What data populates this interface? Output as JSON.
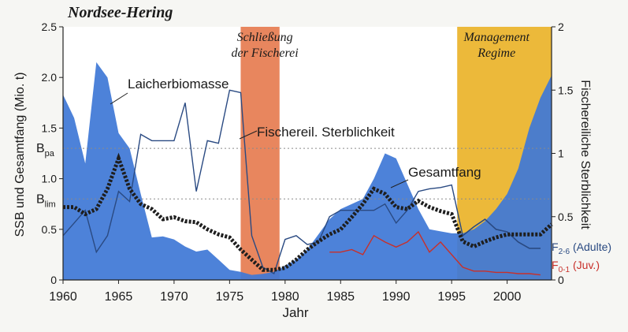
{
  "chart_data": {
    "type": "area",
    "title": "Nordsee-Hering",
    "xlabel": "Jahr",
    "ylabel_left": "SSB und Gesamtfang (Mio. t)",
    "ylabel_right": "Fischereiliche Sterblichkeit",
    "xlim": [
      1960,
      2004
    ],
    "ylim_left": [
      0,
      2.5
    ],
    "ylim_right": [
      0,
      2
    ],
    "x_ticks": [
      1960,
      1965,
      1970,
      1975,
      1980,
      1985,
      1990,
      1995,
      2000
    ],
    "y_left_ticks": [
      "0",
      "0.5",
      "1.0",
      "1.5",
      "2.0",
      "2.5"
    ],
    "y_right_ticks": [
      "0",
      "0.5",
      "1",
      "1.5",
      "2"
    ],
    "reference_lines": [
      {
        "label": "B",
        "sub": "pa",
        "y": 1.3
      },
      {
        "label": "B",
        "sub": "lim",
        "y": 0.8
      }
    ],
    "shaded_periods": [
      {
        "label_lines": [
          "Schließung",
          "der Fischerei"
        ],
        "x_start": 1976,
        "x_end": 1979.5,
        "color": "#e8865e"
      },
      {
        "label_lines": [
          "Management",
          "Regime"
        ],
        "x_start": 1995.5,
        "x_end": 2004,
        "color": "#ecb93a"
      }
    ],
    "series": [
      {
        "name": "Laicherbiomasse",
        "kind": "area",
        "axis": "left",
        "color": "#3f78d6",
        "x": [
          1960,
          1961,
          1962,
          1963,
          1964,
          1965,
          1966,
          1967,
          1968,
          1969,
          1970,
          1971,
          1972,
          1973,
          1974,
          1975,
          1976,
          1977,
          1978,
          1979,
          1980,
          1981,
          1982,
          1983,
          1984,
          1985,
          1986,
          1987,
          1988,
          1989,
          1990,
          1991,
          1992,
          1993,
          1994,
          1995,
          1996,
          1997,
          1998,
          1999,
          2000,
          2001,
          2002,
          2003,
          2004
        ],
        "values": [
          1.83,
          1.6,
          1.15,
          2.15,
          2.0,
          1.45,
          1.3,
          0.85,
          0.42,
          0.43,
          0.4,
          0.33,
          0.28,
          0.3,
          0.2,
          0.1,
          0.08,
          0.05,
          0.06,
          0.08,
          0.14,
          0.2,
          0.3,
          0.45,
          0.6,
          0.7,
          0.75,
          0.8,
          1.0,
          1.25,
          1.2,
          0.95,
          0.7,
          0.5,
          0.48,
          0.46,
          0.46,
          0.5,
          0.58,
          0.7,
          0.85,
          1.1,
          1.5,
          1.8,
          2.02
        ]
      },
      {
        "name": "Fischereil. Sterblichkeit",
        "kind": "line",
        "axis": "right",
        "color": "#2a4a82",
        "x": [
          1960,
          1961,
          1962,
          1963,
          1964,
          1965,
          1966,
          1967,
          1968,
          1969,
          1970,
          1971,
          1972,
          1973,
          1974,
          1975,
          1976,
          1977,
          1978,
          1979,
          1980,
          1981,
          1982,
          1983,
          1984,
          1985,
          1986,
          1987,
          1988,
          1989,
          1990,
          1991,
          1992,
          1993,
          1994,
          1995,
          1996,
          1997,
          1998,
          1999,
          2000,
          2001,
          2002,
          2003
        ],
        "values": [
          0.35,
          0.45,
          0.55,
          0.22,
          0.35,
          0.7,
          0.62,
          1.15,
          1.1,
          1.1,
          1.1,
          1.4,
          0.7,
          1.1,
          1.08,
          1.5,
          1.48,
          0.35,
          0.1,
          0.05,
          0.32,
          0.35,
          0.28,
          0.3,
          0.5,
          0.55,
          0.55,
          0.55,
          0.55,
          0.6,
          0.45,
          0.55,
          0.7,
          0.72,
          0.73,
          0.75,
          0.35,
          0.42,
          0.48,
          0.4,
          0.38,
          0.3,
          0.25,
          0.25
        ]
      },
      {
        "name": "Gesamtfang",
        "kind": "dotted-line",
        "axis": "left",
        "color": "#1e1e1e",
        "x": [
          1960,
          1961,
          1962,
          1963,
          1964,
          1965,
          1966,
          1967,
          1968,
          1969,
          1970,
          1971,
          1972,
          1973,
          1974,
          1975,
          1976,
          1977,
          1978,
          1979,
          1980,
          1981,
          1982,
          1983,
          1984,
          1985,
          1986,
          1987,
          1988,
          1989,
          1990,
          1991,
          1992,
          1993,
          1994,
          1995,
          1996,
          1997,
          1998,
          1999,
          2000,
          2001,
          2002,
          2003,
          2004
        ],
        "values": [
          0.72,
          0.72,
          0.65,
          0.7,
          0.9,
          1.2,
          0.9,
          0.75,
          0.7,
          0.6,
          0.62,
          0.58,
          0.57,
          0.5,
          0.45,
          0.42,
          0.3,
          0.2,
          0.1,
          0.1,
          0.12,
          0.2,
          0.3,
          0.38,
          0.45,
          0.5,
          0.62,
          0.75,
          0.9,
          0.85,
          0.72,
          0.7,
          0.78,
          0.72,
          0.68,
          0.65,
          0.38,
          0.33,
          0.38,
          0.42,
          0.45,
          0.45,
          0.45,
          0.45,
          0.55
        ]
      },
      {
        "name": "F",
        "sub": "2-6",
        "legend_note": "(Adulte)",
        "kind": "line",
        "axis": "right",
        "color": "#2a4a82",
        "x": [
          1996,
          1997,
          1998,
          1999,
          2000,
          2001,
          2002,
          2003
        ],
        "values": [
          0.35,
          0.42,
          0.48,
          0.4,
          0.38,
          0.3,
          0.25,
          0.25
        ]
      },
      {
        "name": "F",
        "sub": "0-1",
        "legend_note": "(Juv.)",
        "kind": "line",
        "axis": "right",
        "color": "#c8302a",
        "x": [
          1984,
          1985,
          1986,
          1987,
          1988,
          1989,
          1990,
          1991,
          1992,
          1993,
          1994,
          1995,
          1996,
          1997,
          1998,
          1999,
          2000,
          2001,
          2002,
          2003
        ],
        "values": [
          0.22,
          0.22,
          0.24,
          0.2,
          0.35,
          0.3,
          0.26,
          0.3,
          0.38,
          0.22,
          0.3,
          0.2,
          0.1,
          0.07,
          0.07,
          0.06,
          0.06,
          0.05,
          0.05,
          0.04
        ]
      }
    ],
    "grid": false,
    "legend": "inline labels"
  }
}
